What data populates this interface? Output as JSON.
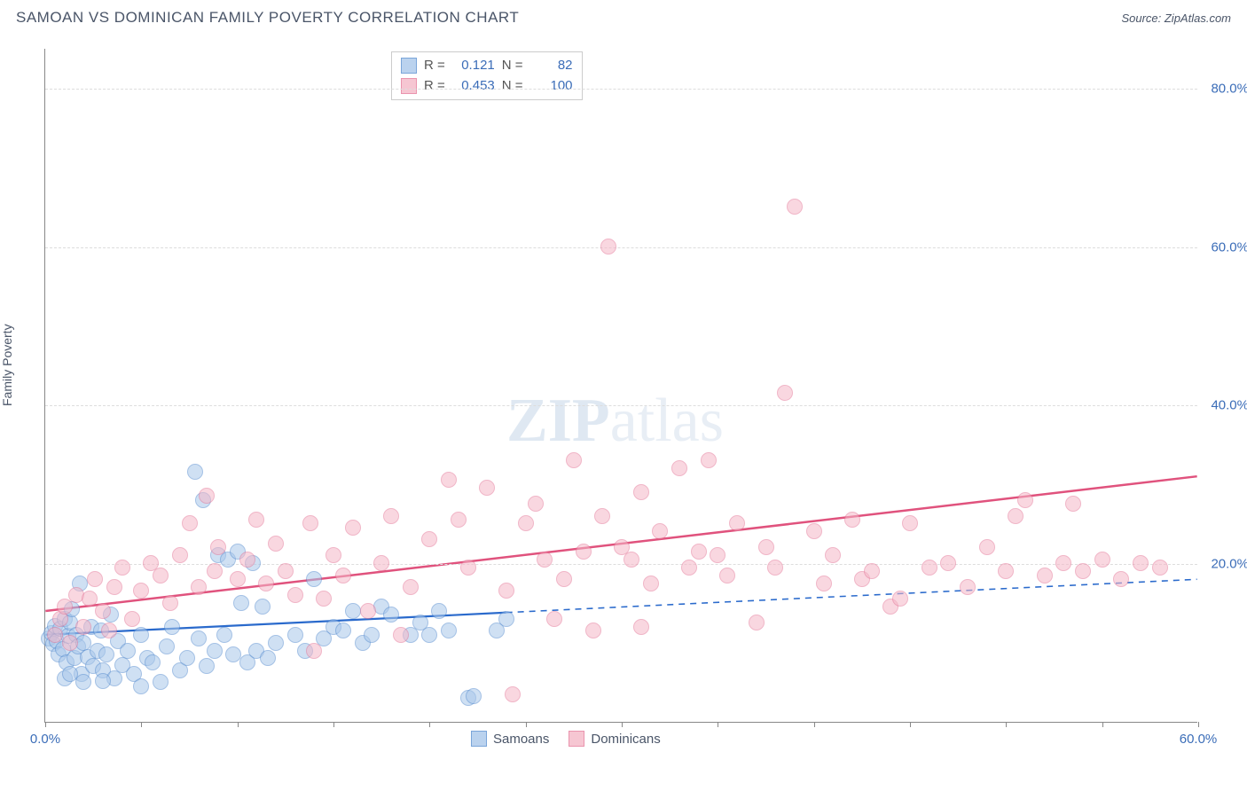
{
  "header": {
    "title": "SAMOAN VS DOMINICAN FAMILY POVERTY CORRELATION CHART",
    "source": "Source: ZipAtlas.com"
  },
  "y_axis_label": "Family Poverty",
  "watermark": {
    "part1": "ZIP",
    "part2": "atlas"
  },
  "chart": {
    "type": "scatter",
    "x_domain": [
      0,
      60
    ],
    "y_domain": [
      0,
      85
    ],
    "x_ticks": [
      0,
      5,
      10,
      15,
      20,
      25,
      30,
      35,
      40,
      45,
      50,
      55,
      60
    ],
    "x_tick_labels": {
      "0": "0.0%",
      "60": "60.0%"
    },
    "y_ticks": [
      20,
      40,
      60,
      80
    ],
    "y_tick_labels": {
      "20": "20.0%",
      "40": "40.0%",
      "60": "60.0%",
      "80": "80.0%"
    },
    "background_color": "#ffffff",
    "grid_color": "#dddddd",
    "axis_color": "#888888",
    "tick_label_color": "#3b6db8",
    "marker_radius": 9,
    "series": [
      {
        "name": "Samoans",
        "fill": "#a9c7ea",
        "stroke": "#5a8fd0",
        "fill_opacity": 0.55,
        "R": "0.121",
        "N": "82",
        "trend": {
          "color": "#2a6acc",
          "width": 2.2,
          "x1": 0,
          "y1": 11,
          "x2": 60,
          "y2": 18,
          "solid_until_x": 24
        },
        "points": [
          [
            0.2,
            10.5
          ],
          [
            0.3,
            11.2
          ],
          [
            0.4,
            9.8
          ],
          [
            0.5,
            12.1
          ],
          [
            0.6,
            10.2
          ],
          [
            0.7,
            8.5
          ],
          [
            0.8,
            11.8
          ],
          [
            0.9,
            9.2
          ],
          [
            1.0,
            13.0
          ],
          [
            1.1,
            7.5
          ],
          [
            1.2,
            10.8
          ],
          [
            1.3,
            12.5
          ],
          [
            1.4,
            14.2
          ],
          [
            1.5,
            8.0
          ],
          [
            1.6,
            11.0
          ],
          [
            1.7,
            9.5
          ],
          [
            1.8,
            17.5
          ],
          [
            1.9,
            6.0
          ],
          [
            2.0,
            10.0
          ],
          [
            2.2,
            8.2
          ],
          [
            2.4,
            12.0
          ],
          [
            2.5,
            7.0
          ],
          [
            2.7,
            9.0
          ],
          [
            2.9,
            11.5
          ],
          [
            3.0,
            6.5
          ],
          [
            3.2,
            8.5
          ],
          [
            3.4,
            13.5
          ],
          [
            3.6,
            5.5
          ],
          [
            3.8,
            10.2
          ],
          [
            4.0,
            7.2
          ],
          [
            4.3,
            9.0
          ],
          [
            4.6,
            6.0
          ],
          [
            5.0,
            11.0
          ],
          [
            5.3,
            8.0
          ],
          [
            5.6,
            7.5
          ],
          [
            6.0,
            5.0
          ],
          [
            6.3,
            9.5
          ],
          [
            6.6,
            12.0
          ],
          [
            7.0,
            6.5
          ],
          [
            7.4,
            8.0
          ],
          [
            7.8,
            31.5
          ],
          [
            8.0,
            10.5
          ],
          [
            8.2,
            28.0
          ],
          [
            8.4,
            7.0
          ],
          [
            8.8,
            9.0
          ],
          [
            9.0,
            21.0
          ],
          [
            9.3,
            11.0
          ],
          [
            9.5,
            20.5
          ],
          [
            9.8,
            8.5
          ],
          [
            10.0,
            21.5
          ],
          [
            10.2,
            15.0
          ],
          [
            10.5,
            7.5
          ],
          [
            10.8,
            20.0
          ],
          [
            11.0,
            9.0
          ],
          [
            11.3,
            14.5
          ],
          [
            11.6,
            8.0
          ],
          [
            12.0,
            10.0
          ],
          [
            13.0,
            11.0
          ],
          [
            13.5,
            9.0
          ],
          [
            14.0,
            18.0
          ],
          [
            14.5,
            10.5
          ],
          [
            15.0,
            12.0
          ],
          [
            15.5,
            11.5
          ],
          [
            16.0,
            14.0
          ],
          [
            16.5,
            10.0
          ],
          [
            17.0,
            11.0
          ],
          [
            17.5,
            14.5
          ],
          [
            18.0,
            13.5
          ],
          [
            19.0,
            11.0
          ],
          [
            19.5,
            12.5
          ],
          [
            20.0,
            11.0
          ],
          [
            20.5,
            14.0
          ],
          [
            21.0,
            11.5
          ],
          [
            22.0,
            3.0
          ],
          [
            22.3,
            3.2
          ],
          [
            23.5,
            11.5
          ],
          [
            24.0,
            13.0
          ],
          [
            1.0,
            5.5
          ],
          [
            1.3,
            6.0
          ],
          [
            2.0,
            5.0
          ],
          [
            3.0,
            5.2
          ],
          [
            5.0,
            4.5
          ]
        ]
      },
      {
        "name": "Dominicans",
        "fill": "#f5b8c8",
        "stroke": "#e57a9a",
        "fill_opacity": 0.55,
        "R": "0.453",
        "N": "100",
        "trend": {
          "color": "#e0527d",
          "width": 2.5,
          "x1": 0,
          "y1": 14,
          "x2": 60,
          "y2": 31,
          "solid_until_x": 60
        },
        "points": [
          [
            0.5,
            11.0
          ],
          [
            0.8,
            13.0
          ],
          [
            1.0,
            14.5
          ],
          [
            1.3,
            10.0
          ],
          [
            1.6,
            16.0
          ],
          [
            2.0,
            12.0
          ],
          [
            2.3,
            15.5
          ],
          [
            2.6,
            18.0
          ],
          [
            3.0,
            14.0
          ],
          [
            3.3,
            11.5
          ],
          [
            3.6,
            17.0
          ],
          [
            4.0,
            19.5
          ],
          [
            4.5,
            13.0
          ],
          [
            5.0,
            16.5
          ],
          [
            5.5,
            20.0
          ],
          [
            6.0,
            18.5
          ],
          [
            6.5,
            15.0
          ],
          [
            7.0,
            21.0
          ],
          [
            7.5,
            25.0
          ],
          [
            8.0,
            17.0
          ],
          [
            8.4,
            28.5
          ],
          [
            8.8,
            19.0
          ],
          [
            9.0,
            22.0
          ],
          [
            10.0,
            18.0
          ],
          [
            10.5,
            20.5
          ],
          [
            11.0,
            25.5
          ],
          [
            11.5,
            17.5
          ],
          [
            12.0,
            22.5
          ],
          [
            12.5,
            19.0
          ],
          [
            13.0,
            16.0
          ],
          [
            13.8,
            25.0
          ],
          [
            14.5,
            15.5
          ],
          [
            15.0,
            21.0
          ],
          [
            15.5,
            18.5
          ],
          [
            16.0,
            24.5
          ],
          [
            16.8,
            14.0
          ],
          [
            17.5,
            20.0
          ],
          [
            18.0,
            26.0
          ],
          [
            19.0,
            17.0
          ],
          [
            20.0,
            23.0
          ],
          [
            21.0,
            30.5
          ],
          [
            21.5,
            25.5
          ],
          [
            22.0,
            19.5
          ],
          [
            23.0,
            29.5
          ],
          [
            24.0,
            16.5
          ],
          [
            24.3,
            3.5
          ],
          [
            25.0,
            25.0
          ],
          [
            25.5,
            27.5
          ],
          [
            26.0,
            20.5
          ],
          [
            27.0,
            18.0
          ],
          [
            27.5,
            33.0
          ],
          [
            28.0,
            21.5
          ],
          [
            28.5,
            11.5
          ],
          [
            29.0,
            26.0
          ],
          [
            29.3,
            60.0
          ],
          [
            30.0,
            22.0
          ],
          [
            30.5,
            20.5
          ],
          [
            31.0,
            29.0
          ],
          [
            31.5,
            17.5
          ],
          [
            32.0,
            24.0
          ],
          [
            33.0,
            32.0
          ],
          [
            33.5,
            19.5
          ],
          [
            34.0,
            21.5
          ],
          [
            34.5,
            33.0
          ],
          [
            35.0,
            21.0
          ],
          [
            35.5,
            18.5
          ],
          [
            36.0,
            25.0
          ],
          [
            37.0,
            12.5
          ],
          [
            37.5,
            22.0
          ],
          [
            38.0,
            19.5
          ],
          [
            38.5,
            41.5
          ],
          [
            39.0,
            65.0
          ],
          [
            40.0,
            24.0
          ],
          [
            40.5,
            17.5
          ],
          [
            41.0,
            21.0
          ],
          [
            42.0,
            25.5
          ],
          [
            42.5,
            18.0
          ],
          [
            43.0,
            19.0
          ],
          [
            44.0,
            14.5
          ],
          [
            45.0,
            25.0
          ],
          [
            46.0,
            19.5
          ],
          [
            47.0,
            20.0
          ],
          [
            48.0,
            17.0
          ],
          [
            49.0,
            22.0
          ],
          [
            50.0,
            19.0
          ],
          [
            50.5,
            26.0
          ],
          [
            51.0,
            28.0
          ],
          [
            52.0,
            18.5
          ],
          [
            53.0,
            20.0
          ],
          [
            53.5,
            27.5
          ],
          [
            54.0,
            19.0
          ],
          [
            55.0,
            20.5
          ],
          [
            56.0,
            18.0
          ],
          [
            57.0,
            20.0
          ],
          [
            58.0,
            19.5
          ],
          [
            14.0,
            9.0
          ],
          [
            18.5,
            11.0
          ],
          [
            26.5,
            13.0
          ],
          [
            31.0,
            12.0
          ],
          [
            44.5,
            15.5
          ]
        ]
      }
    ]
  },
  "stats_box": {
    "r_label": "R =",
    "n_label": "N ="
  },
  "legend_labels": {
    "samoans": "Samoans",
    "dominicans": "Dominicans"
  }
}
